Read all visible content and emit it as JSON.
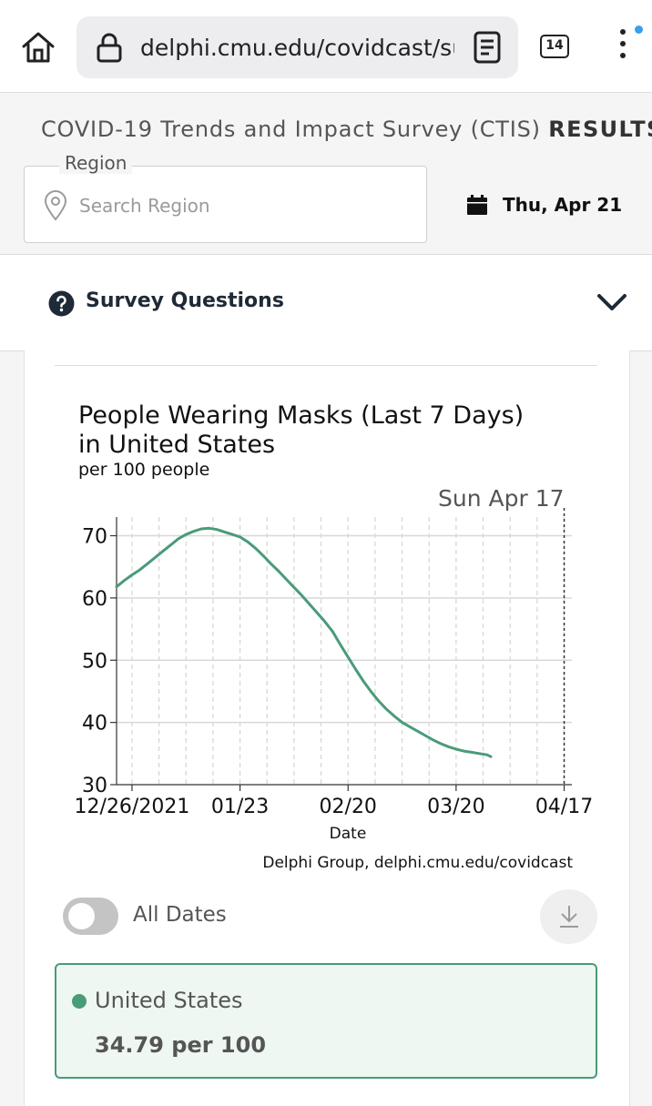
{
  "browser": {
    "url": "delphi.cmu.edu/covidcast/sur",
    "tab_count": "14"
  },
  "header": {
    "title_prefix": "COVID-19 Trends and Impact Survey (CTIS)",
    "title_bold": "RESULTS",
    "region_label": "Region",
    "region_placeholder": "Search Region",
    "date": "Thu, Apr 21"
  },
  "survey": {
    "label": "Survey Questions"
  },
  "chart_data": {
    "type": "line",
    "title_line1": "People Wearing Masks (Last 7 Days)",
    "title_line2": "in United States",
    "subtitle": "per 100 people",
    "xlabel": "Date",
    "ylabel": "",
    "ylim": [
      30,
      73
    ],
    "y_ticks": [
      30,
      40,
      50,
      60,
      70
    ],
    "x_tick_labels": [
      "12/26/2021",
      "01/23",
      "02/20",
      "03/20",
      "04/17"
    ],
    "x_tick_days": [
      0,
      28,
      56,
      84,
      112
    ],
    "x_range_days": [
      -4,
      114
    ],
    "marker_label": "Sun Apr 17",
    "marker_day": 112,
    "credit": "Delphi Group, delphi.cmu.edu/covidcast",
    "grid": true,
    "series": [
      {
        "color": "#4a9b78",
        "points": [
          [
            -4,
            61.8
          ],
          [
            -2,
            62.8
          ],
          [
            0,
            63.7
          ],
          [
            2,
            64.5
          ],
          [
            4,
            65.5
          ],
          [
            6,
            66.5
          ],
          [
            8,
            67.5
          ],
          [
            10,
            68.5
          ],
          [
            12,
            69.5
          ],
          [
            14,
            70.2
          ],
          [
            16,
            70.7
          ],
          [
            18,
            71.1
          ],
          [
            20,
            71.2
          ],
          [
            22,
            71.0
          ],
          [
            24,
            70.6
          ],
          [
            26,
            70.2
          ],
          [
            28,
            69.8
          ],
          [
            30,
            69.0
          ],
          [
            32,
            68.0
          ],
          [
            34,
            66.8
          ],
          [
            36,
            65.5
          ],
          [
            38,
            64.3
          ],
          [
            40,
            63.0
          ],
          [
            42,
            61.7
          ],
          [
            44,
            60.4
          ],
          [
            46,
            59.0
          ],
          [
            48,
            57.6
          ],
          [
            50,
            56.2
          ],
          [
            52,
            54.6
          ],
          [
            54,
            52.5
          ],
          [
            56,
            50.5
          ],
          [
            58,
            48.5
          ],
          [
            60,
            46.6
          ],
          [
            62,
            44.9
          ],
          [
            64,
            43.4
          ],
          [
            66,
            42.1
          ],
          [
            68,
            41.0
          ],
          [
            70,
            40.0
          ],
          [
            72,
            39.3
          ],
          [
            74,
            38.6
          ],
          [
            76,
            37.9
          ],
          [
            78,
            37.2
          ],
          [
            80,
            36.6
          ],
          [
            82,
            36.1
          ],
          [
            84,
            35.7
          ],
          [
            86,
            35.4
          ],
          [
            88,
            35.2
          ],
          [
            90,
            35.0
          ],
          [
            92,
            34.8
          ],
          [
            93,
            34.5
          ]
        ]
      }
    ]
  },
  "controls": {
    "toggle_label": "All Dates",
    "toggle_on": false
  },
  "location": {
    "name": "United States",
    "value": "34.79 per 100",
    "color": "#4a9b78"
  }
}
